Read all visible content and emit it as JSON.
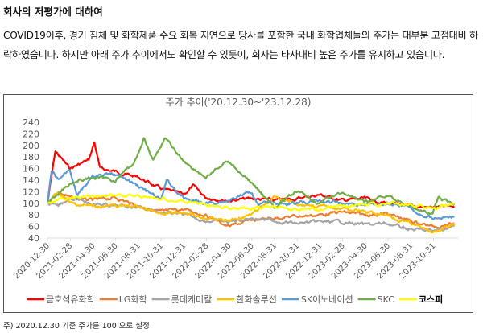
{
  "heading": "회사의 저평가에 대하여",
  "paragraph": "COVID19이후, 경기 침체 및 화학제품 수요 회복 지연으로 당사를 포함한 국내 화학업체들의 주가는 대부분 고점대비 하락하였습니다. 하지만 아래 주가 추이에서도 확인할 수 있듯이, 회사는 타사대비 높은 주가를 유지하고 있습니다.",
  "footnote": "주) 2020.12.30 기준 주가를 100 으로 설정",
  "chart_data": {
    "type": "line",
    "title": "주가 추이('20.12.30~'23.12.28)",
    "ylim": [
      40,
      240
    ],
    "yticks": [
      "240",
      "220",
      "200",
      "180",
      "160",
      "140",
      "120",
      "100",
      "80",
      "60",
      "40"
    ],
    "xticks": [
      "2020-12-30",
      "2021-02-28",
      "2021-04-30",
      "2021-06-30",
      "2021-08-31",
      "2021-10-31",
      "2021-12-31",
      "2022-02-28",
      "2022-04-30",
      "2022-06-30",
      "2022-08-31",
      "2022-10-31",
      "2022-12-31",
      "2023-02-28",
      "2023-04-30",
      "2023-06-30",
      "2023-08-31",
      "2023-10-31"
    ],
    "xrange": [
      "2020-12-30",
      "2023-12-28"
    ],
    "grid": false,
    "legend": "bottom",
    "series": [
      {
        "name": "금호석유화학",
        "color": "#ff0000",
        "points": [
          [
            "2020-12-30",
            100
          ],
          [
            "2021-01-20",
            190
          ],
          [
            "2021-02-28",
            160
          ],
          [
            "2021-04-20",
            175
          ],
          [
            "2021-05-05",
            205
          ],
          [
            "2021-05-20",
            160
          ],
          [
            "2021-06-30",
            155
          ],
          [
            "2021-08-31",
            145
          ],
          [
            "2021-10-31",
            125
          ],
          [
            "2021-12-31",
            115
          ],
          [
            "2022-01-25",
            130
          ],
          [
            "2022-02-28",
            110
          ],
          [
            "2022-04-30",
            105
          ],
          [
            "2022-06-30",
            108
          ],
          [
            "2022-08-31",
            105
          ],
          [
            "2022-10-31",
            108
          ],
          [
            "2022-12-31",
            115
          ],
          [
            "2023-02-28",
            105
          ],
          [
            "2023-04-30",
            108
          ],
          [
            "2023-06-30",
            100
          ],
          [
            "2023-08-31",
            95
          ],
          [
            "2023-10-31",
            93
          ],
          [
            "2023-12-28",
            95
          ]
        ]
      },
      {
        "name": "LG화학",
        "color": "#ed7d31",
        "points": [
          [
            "2020-12-30",
            100
          ],
          [
            "2021-01-28",
            120
          ],
          [
            "2021-02-28",
            110
          ],
          [
            "2021-04-30",
            105
          ],
          [
            "2021-06-30",
            110
          ],
          [
            "2021-08-31",
            95
          ],
          [
            "2021-10-31",
            85
          ],
          [
            "2021-12-31",
            90
          ],
          [
            "2022-02-28",
            80
          ],
          [
            "2022-04-30",
            60
          ],
          [
            "2022-06-30",
            70
          ],
          [
            "2022-08-31",
            75
          ],
          [
            "2022-10-31",
            78
          ],
          [
            "2022-12-31",
            80
          ],
          [
            "2023-02-28",
            85
          ],
          [
            "2023-04-30",
            80
          ],
          [
            "2023-06-30",
            82
          ],
          [
            "2023-08-31",
            70
          ],
          [
            "2023-10-31",
            60
          ],
          [
            "2023-12-28",
            65
          ]
        ]
      },
      {
        "name": "롯데케미칼",
        "color": "#a5a5a5",
        "points": [
          [
            "2020-12-30",
            100
          ],
          [
            "2021-01-28",
            95
          ],
          [
            "2021-02-28",
            110
          ],
          [
            "2021-04-30",
            100
          ],
          [
            "2021-06-30",
            95
          ],
          [
            "2021-08-31",
            95
          ],
          [
            "2021-10-31",
            85
          ],
          [
            "2021-12-31",
            80
          ],
          [
            "2022-02-28",
            70
          ],
          [
            "2022-04-30",
            68
          ],
          [
            "2022-06-30",
            75
          ],
          [
            "2022-08-31",
            70
          ],
          [
            "2022-10-31",
            65
          ],
          [
            "2022-12-31",
            68
          ],
          [
            "2023-02-28",
            68
          ],
          [
            "2023-04-30",
            63
          ],
          [
            "2023-06-30",
            65
          ],
          [
            "2023-08-31",
            55
          ],
          [
            "2023-10-31",
            52
          ],
          [
            "2023-12-28",
            60
          ]
        ]
      },
      {
        "name": "한화솔루션",
        "color": "#ffc000",
        "points": [
          [
            "2020-12-30",
            100
          ],
          [
            "2021-01-28",
            120
          ],
          [
            "2021-02-28",
            100
          ],
          [
            "2021-04-30",
            95
          ],
          [
            "2021-06-30",
            95
          ],
          [
            "2021-08-31",
            95
          ],
          [
            "2021-10-31",
            80
          ],
          [
            "2021-12-31",
            85
          ],
          [
            "2022-02-28",
            75
          ],
          [
            "2022-04-30",
            70
          ],
          [
            "2022-06-30",
            80
          ],
          [
            "2022-08-31",
            110
          ],
          [
            "2022-10-31",
            100
          ],
          [
            "2022-12-31",
            95
          ],
          [
            "2023-02-28",
            92
          ],
          [
            "2023-04-30",
            85
          ],
          [
            "2023-06-30",
            80
          ],
          [
            "2023-08-31",
            65
          ],
          [
            "2023-10-31",
            50
          ],
          [
            "2023-12-28",
            62
          ]
        ]
      },
      {
        "name": "SK이노베이션",
        "color": "#5b9bd5",
        "points": [
          [
            "2020-12-30",
            100
          ],
          [
            "2021-01-10",
            155
          ],
          [
            "2021-01-28",
            140
          ],
          [
            "2021-02-28",
            160
          ],
          [
            "2021-03-20",
            115
          ],
          [
            "2021-04-30",
            145
          ],
          [
            "2021-06-30",
            150
          ],
          [
            "2021-08-31",
            130
          ],
          [
            "2021-10-31",
            105
          ],
          [
            "2021-11-15",
            140
          ],
          [
            "2021-12-31",
            108
          ],
          [
            "2022-02-28",
            100
          ],
          [
            "2022-04-30",
            105
          ],
          [
            "2022-06-30",
            120
          ],
          [
            "2022-07-20",
            100
          ],
          [
            "2022-08-31",
            100
          ],
          [
            "2022-10-31",
            100
          ],
          [
            "2022-12-31",
            105
          ],
          [
            "2023-02-28",
            100
          ],
          [
            "2023-04-30",
            98
          ],
          [
            "2023-06-30",
            100
          ],
          [
            "2023-08-31",
            95
          ],
          [
            "2023-09-20",
            80
          ],
          [
            "2023-10-31",
            75
          ],
          [
            "2023-12-28",
            76
          ]
        ]
      },
      {
        "name": "SKC",
        "color": "#70ad47",
        "points": [
          [
            "2020-12-30",
            100
          ],
          [
            "2021-02-28",
            135
          ],
          [
            "2021-04-30",
            145
          ],
          [
            "2021-06-30",
            140
          ],
          [
            "2021-08-20",
            170
          ],
          [
            "2021-09-15",
            212
          ],
          [
            "2021-10-10",
            175
          ],
          [
            "2021-11-10",
            212
          ],
          [
            "2021-12-31",
            173
          ],
          [
            "2022-02-28",
            145
          ],
          [
            "2022-04-30",
            173
          ],
          [
            "2022-06-30",
            136
          ],
          [
            "2022-08-31",
            94
          ],
          [
            "2022-10-31",
            120
          ],
          [
            "2022-12-31",
            100
          ],
          [
            "2023-02-28",
            120
          ],
          [
            "2023-04-30",
            100
          ],
          [
            "2023-06-30",
            115
          ],
          [
            "2023-08-31",
            95
          ],
          [
            "2023-10-31",
            80
          ],
          [
            "2023-11-15",
            110
          ],
          [
            "2023-12-28",
            97
          ]
        ]
      },
      {
        "name": "코스피",
        "color": "#ffff00",
        "points": [
          [
            "2020-12-30",
            100
          ],
          [
            "2021-02-28",
            110
          ],
          [
            "2021-06-30",
            115
          ],
          [
            "2021-10-31",
            110
          ],
          [
            "2021-12-31",
            103
          ],
          [
            "2022-02-28",
            97
          ],
          [
            "2022-04-30",
            93
          ],
          [
            "2022-06-30",
            90
          ],
          [
            "2022-08-31",
            95
          ],
          [
            "2022-10-31",
            88
          ],
          [
            "2022-12-31",
            90
          ],
          [
            "2023-02-28",
            95
          ],
          [
            "2023-04-30",
            98
          ],
          [
            "2023-06-30",
            98
          ],
          [
            "2023-08-31",
            100
          ],
          [
            "2023-10-31",
            92
          ],
          [
            "2023-12-28",
            98
          ]
        ]
      }
    ]
  }
}
